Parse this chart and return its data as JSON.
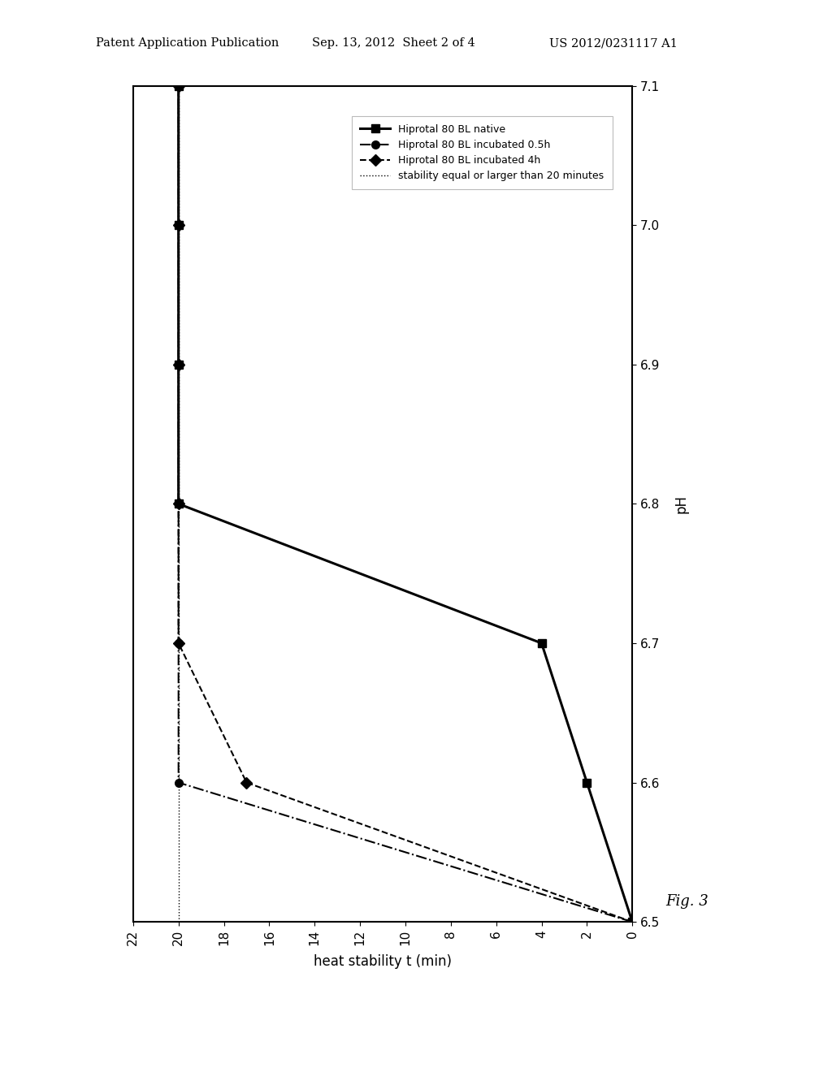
{
  "header_left": "Patent Application Publication",
  "header_mid": "Sep. 13, 2012  Sheet 2 of 4",
  "header_right": "US 2012/0231117 A1",
  "xlabel_rotated": "heat stability t (min)",
  "ylabel_rotated": "pH",
  "fig_label": "Fig. 3",
  "pH_axis": [
    6.5,
    6.6,
    6.7,
    6.8,
    6.9,
    7.0,
    7.1
  ],
  "hs_ticks": [
    0,
    2,
    4,
    6,
    8,
    10,
    12,
    14,
    16,
    18,
    20,
    22
  ],
  "native_pH": [
    6.5,
    6.6,
    6.7,
    6.8,
    6.9,
    7.0,
    7.1
  ],
  "native_hs": [
    0,
    2,
    4,
    20,
    20,
    20,
    20
  ],
  "h05_pH": [
    6.5,
    6.6,
    6.7,
    6.8,
    6.9,
    7.0,
    7.1
  ],
  "h05_hs": [
    0,
    20,
    20,
    20,
    20,
    20,
    20
  ],
  "h4_pH": [
    6.5,
    6.6,
    6.7,
    6.8,
    6.9,
    7.0,
    7.1
  ],
  "h4_hs": [
    0,
    17,
    20,
    20,
    20,
    20,
    20
  ],
  "ref_hs": 20,
  "legend_labels": [
    "Hiprotal 80 BL native",
    "Hiprotal 80 BL incubated 0.5h",
    "Hiprotal 80 BL incubated 4h",
    "stability equal or larger than 20 minutes"
  ],
  "bg_color": "#ffffff",
  "line_color": "#000000"
}
